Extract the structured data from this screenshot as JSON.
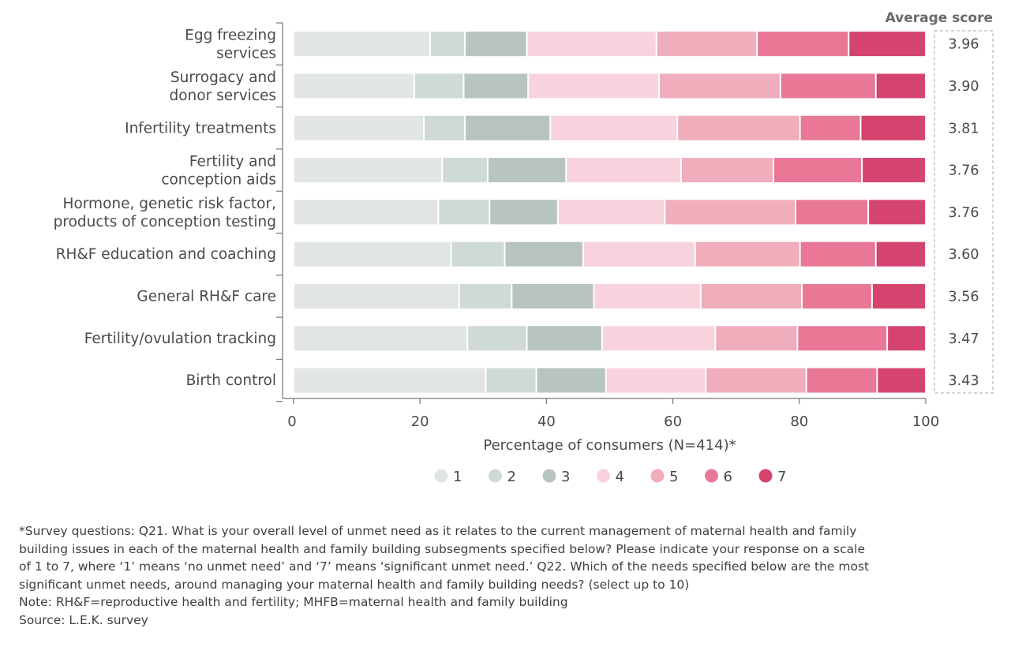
{
  "chart_data": {
    "type": "bar",
    "orientation": "horizontal",
    "stacked": true,
    "categories": [
      "Egg freezing services",
      "Surrogacy and donor services",
      "Infertility treatments",
      "Fertility and conception aids",
      "Hormone, genetic risk factor, products of conception testing",
      "RH&F education and coaching",
      "General RH&F care",
      "Fertility/ovulation tracking",
      "Birth control"
    ],
    "category_lines": [
      [
        "Egg freezing",
        "services"
      ],
      [
        "Surrogacy and",
        "donor services"
      ],
      [
        "Infertility treatments"
      ],
      [
        "Fertility and",
        "conception aids"
      ],
      [
        "Hormone, genetic risk factor,",
        "products of conception testing"
      ],
      [
        "RH&F education and coaching"
      ],
      [
        "General RH&F care"
      ],
      [
        "Fertility/ovulation tracking"
      ],
      [
        "Birth control"
      ]
    ],
    "series": [
      {
        "name": "1",
        "color": "#e1e5e3",
        "values": [
          21.6,
          19.1,
          20.6,
          23.5,
          22.9,
          24.9,
          26.2,
          27.5,
          30.4
        ]
      },
      {
        "name": "2",
        "color": "#cfd9d7",
        "values": [
          5.5,
          7.8,
          6.5,
          7.2,
          8.1,
          8.5,
          8.3,
          9.4,
          8.0
        ]
      },
      {
        "name": "3",
        "color": "#b8c4be",
        "values": [
          9.8,
          10.2,
          13.5,
          12.4,
          10.8,
          12.4,
          13.0,
          11.9,
          11.0
        ]
      },
      {
        "name": "4",
        "color": "#f8d3de",
        "values": [
          20.5,
          20.7,
          20.1,
          18.2,
          16.9,
          17.7,
          16.9,
          17.9,
          15.8
        ]
      },
      {
        "name": "5",
        "color": "#f0adbb",
        "values": [
          15.9,
          19.2,
          19.4,
          14.6,
          20.7,
          16.6,
          16.0,
          13.0,
          15.9
        ]
      },
      {
        "name": "6",
        "color": "#e87896",
        "values": [
          14.5,
          15.1,
          9.6,
          14.0,
          11.5,
          12.0,
          11.1,
          14.2,
          11.2
        ]
      },
      {
        "name": "7",
        "color": "#d4446e",
        "values": [
          12.2,
          7.9,
          10.3,
          10.1,
          9.1,
          7.9,
          8.5,
          6.1,
          7.7
        ]
      }
    ],
    "average_score_title": "Average score",
    "average_scores": [
      "3.96",
      "3.90",
      "3.81",
      "3.76",
      "3.76",
      "3.60",
      "3.56",
      "3.47",
      "3.43"
    ],
    "xlabel": "Percentage of consumers (N=414)*",
    "xlim": [
      0,
      100
    ],
    "xticks": [
      "0",
      "20",
      "40",
      "60",
      "80",
      "100"
    ],
    "grid": false,
    "legend_position": "bottom"
  },
  "footnotes": [
    "*Survey questions: Q21. What is your overall level of unmet need as it relates to the current management of maternal health and family",
    "building issues in each of the maternal health and family building subsegments specified below? Please indicate your response on a scale",
    "of 1 to 7, where ‘1’ means ‘no unmet need’ and ‘7’ means ‘significant unmet need.’ Q22. Which of the needs specified below are the most",
    "significant unmet needs, around managing your maternal health and family building needs? (select up to 10)",
    "Note: RH&F=reproductive health and fertility; MHFB=maternal health and family building",
    "Source: L.E.K. survey"
  ]
}
